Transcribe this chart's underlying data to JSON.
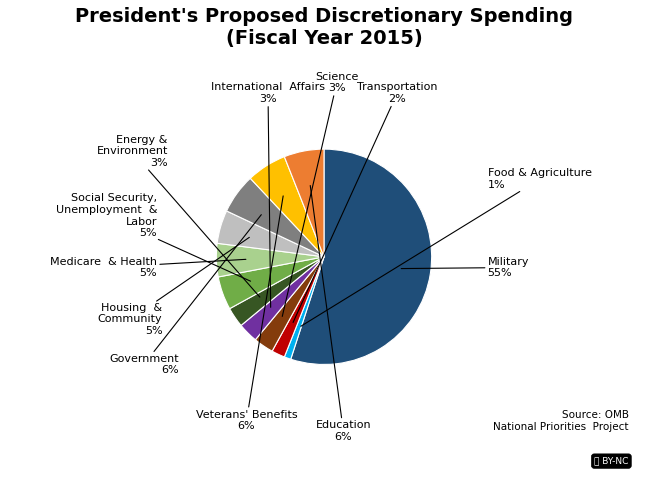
{
  "title": "President's Proposed Discretionary Spending\n(Fiscal Year 2015)",
  "values": [
    55,
    1,
    2,
    3,
    3,
    3,
    5,
    5,
    5,
    6,
    6,
    6
  ],
  "colors": [
    "#1F4E79",
    "#00B0F0",
    "#C00000",
    "#843C0C",
    "#7030A0",
    "#375623",
    "#70AD47",
    "#A9D18E",
    "#BFBFBF",
    "#7F7F7F",
    "#FFC000",
    "#ED7D31"
  ],
  "label_texts": [
    "Military\n55%",
    "Food & Agriculture\n1%",
    "Transportation\n2%",
    "Science\n3%",
    "International  Affairs\n3%",
    "Energy &\nEnvironment\n3%",
    "Social Security,\nUnemployment  &\nLabor\n5%",
    "Medicare  & Health\n5%",
    "Housing  &\nCommunity\n5%",
    "Government\n6%",
    "Veterans' Benefits\n6%",
    "Education\n6%"
  ],
  "label_positions": [
    [
      1.52,
      -0.1,
      "left",
      "center"
    ],
    [
      1.52,
      0.72,
      "left",
      "center"
    ],
    [
      0.68,
      1.42,
      "center",
      "bottom"
    ],
    [
      0.12,
      1.52,
      "center",
      "bottom"
    ],
    [
      -0.52,
      1.42,
      "center",
      "bottom"
    ],
    [
      -1.45,
      0.98,
      "right",
      "center"
    ],
    [
      -1.55,
      0.38,
      "right",
      "center"
    ],
    [
      -1.55,
      -0.1,
      "right",
      "center"
    ],
    [
      -1.5,
      -0.58,
      "right",
      "center"
    ],
    [
      -1.35,
      -1.0,
      "right",
      "center"
    ],
    [
      -0.72,
      -1.42,
      "center",
      "top"
    ],
    [
      0.18,
      -1.52,
      "center",
      "top"
    ]
  ],
  "arrow_points": [
    [
      0.5,
      0.0
    ],
    [
      0.68,
      0.12
    ],
    [
      0.18,
      0.68
    ],
    [
      0.05,
      0.7
    ],
    [
      -0.22,
      0.68
    ],
    [
      -0.62,
      0.48
    ],
    [
      -0.68,
      0.28
    ],
    [
      -0.68,
      0.0
    ],
    [
      -0.68,
      -0.25
    ],
    [
      -0.62,
      -0.45
    ],
    [
      -0.35,
      -0.62
    ],
    [
      0.08,
      -0.68
    ]
  ],
  "source_text": "Source: OMB\nNational Priorities  Project",
  "background_color": "#FFFFFF",
  "title_fontsize": 14,
  "label_fontsize": 8.0,
  "source_fontsize": 7.5
}
